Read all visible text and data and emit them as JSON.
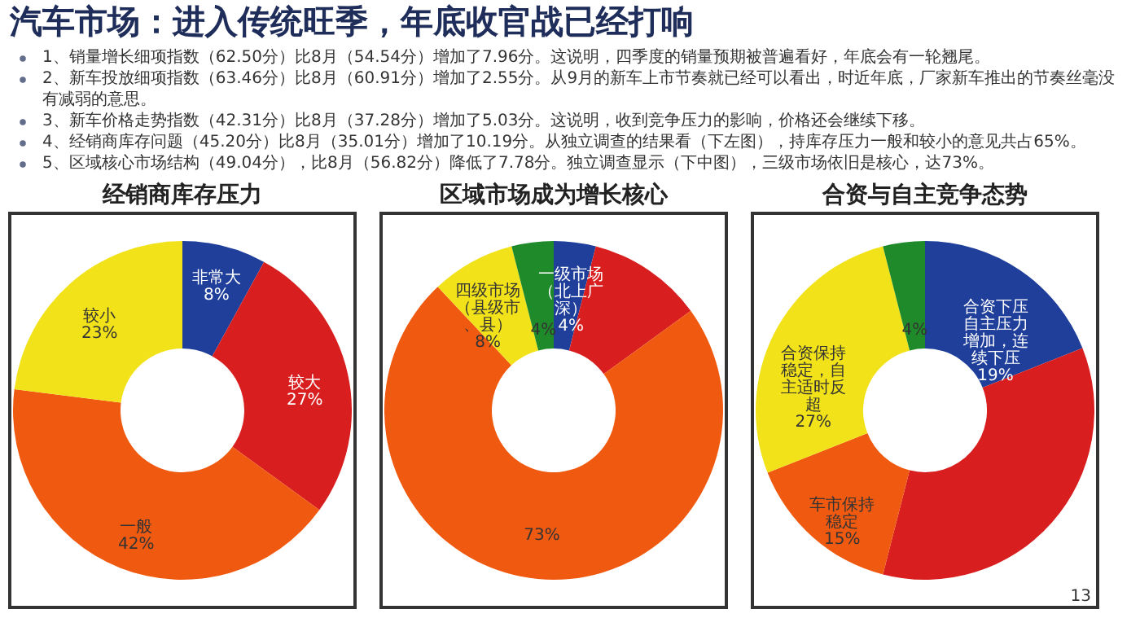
{
  "chart_data": [
    {
      "type": "other",
      "title": "汽车市场：进入传统旺季，年底收官战已经打响",
      "annotations": [
        "1、销量增长细项指数（62.50分）比8月（54.54分）增加了7.96分。这说明，四季度的销量预期被普遍看好，年底会有一轮翘尾。",
        "2、新车投放细项指数（63.46分）比8月（60.91分）增加了2.55分。从9月的新车上市节奏就已经可以看出，时近年底，厂家新车推出的节奏丝毫没有减弱的意思。",
        "3、新车价格走势指数（42.31分）比8月（37.28分）增加了5.03分。这说明，收到竞争压力的影响，价格还会继续下移。",
        "4、经销商库存问题（45.20分）比8月（35.01分）增加了10.19分。从独立调查的结果看（下左图），持库存压力一般和较小的意见共占65%。",
        "5、区域核心市场结构（49.04分），比8月（56.82分）降低了7.78分。独立调查显示（下中图），三级市场依旧是核心，达73%。"
      ]
    },
    {
      "type": "donut",
      "title": "经销商库存压力",
      "categories": [
        "非常大",
        "较大",
        "一般",
        "较小"
      ],
      "values": [
        8,
        27,
        42,
        23
      ],
      "value_labels": [
        "8%",
        "27%",
        "42%",
        "23%"
      ],
      "colors": [
        "#1f3f9a",
        "#d81e1e",
        "#f05a10",
        "#f2e21a"
      ]
    },
    {
      "type": "donut",
      "title": "区域市场成为增长核心",
      "categories": [
        "一级市场（北上广深）",
        null,
        null,
        "四级市场（县级市、县）",
        null
      ],
      "values": [
        4,
        11,
        73,
        8,
        4
      ],
      "value_labels": [
        "4%",
        null,
        "73%",
        "8%",
        "4%"
      ],
      "colors": [
        "#1f3f9a",
        "#d81e1e",
        "#f05a10",
        "#f2e21a",
        "#1e8a2a"
      ]
    },
    {
      "type": "donut",
      "title": "合资与自主竞争态势",
      "categories": [
        "合资下压自主压力增加，连续下压",
        null,
        "车市保持稳定",
        "合资保持稳定，自主适时反超",
        null
      ],
      "values": [
        19,
        35,
        15,
        27,
        4
      ],
      "value_labels": [
        "19%",
        null,
        "15%",
        "27%",
        "4%"
      ],
      "colors": [
        "#1f3f9a",
        "#d81e1e",
        "#f05a10",
        "#f2e21a",
        "#1e8a2a"
      ],
      "annotations": [
        "13"
      ]
    }
  ]
}
